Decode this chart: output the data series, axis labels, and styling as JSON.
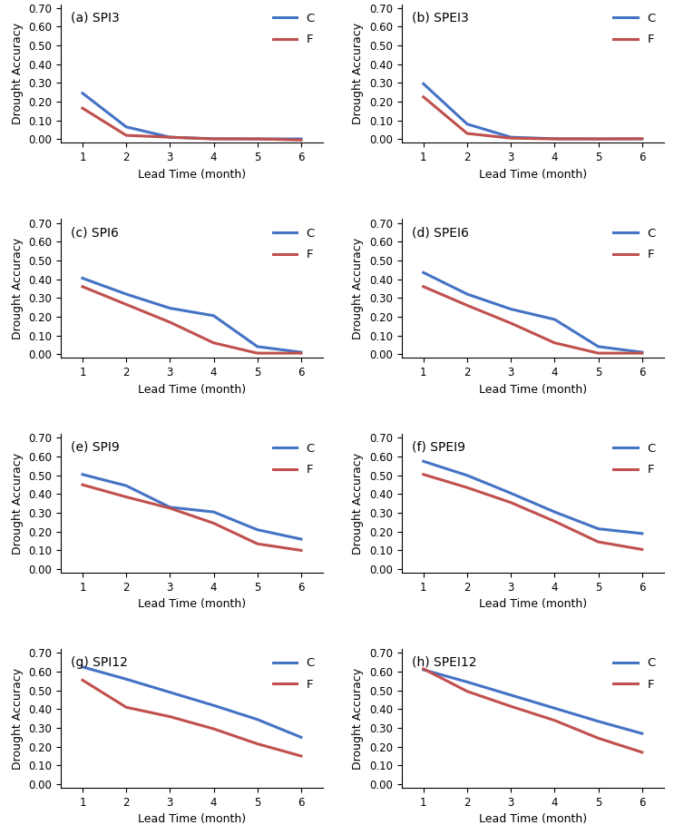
{
  "subplots": [
    {
      "title": "(a) SPI3",
      "C": [
        0.245,
        0.065,
        0.01,
        0.002,
        0.001,
        0.001
      ],
      "F": [
        0.165,
        0.02,
        0.01,
        0.001,
        0.001,
        -0.005
      ]
    },
    {
      "title": "(b) SPEI3",
      "C": [
        0.295,
        0.08,
        0.01,
        0.002,
        0.001,
        0.001
      ],
      "F": [
        0.225,
        0.03,
        0.005,
        0.001,
        0.001,
        0.002
      ]
    },
    {
      "title": "(c) SPI6",
      "C": [
        0.405,
        0.32,
        0.245,
        0.205,
        0.04,
        0.01
      ],
      "F": [
        0.36,
        0.265,
        0.17,
        0.06,
        0.005,
        0.005
      ]
    },
    {
      "title": "(d) SPEI6",
      "C": [
        0.435,
        0.32,
        0.24,
        0.185,
        0.04,
        0.01
      ],
      "F": [
        0.36,
        0.26,
        0.165,
        0.06,
        0.005,
        0.005
      ]
    },
    {
      "title": "(e) SPI9",
      "C": [
        0.505,
        0.445,
        0.33,
        0.305,
        0.21,
        0.16
      ],
      "F": [
        0.45,
        0.385,
        0.325,
        0.245,
        0.135,
        0.1
      ]
    },
    {
      "title": "(f) SPEI9",
      "C": [
        0.575,
        0.5,
        0.405,
        0.305,
        0.215,
        0.19
      ],
      "F": [
        0.505,
        0.435,
        0.355,
        0.255,
        0.145,
        0.105
      ]
    },
    {
      "title": "(g) SPI12",
      "C": [
        0.625,
        0.56,
        0.49,
        0.42,
        0.345,
        0.25
      ],
      "F": [
        0.555,
        0.41,
        0.36,
        0.295,
        0.215,
        0.15
      ]
    },
    {
      "title": "(h) SPEI12",
      "C": [
        0.61,
        0.545,
        0.475,
        0.405,
        0.335,
        0.27
      ],
      "F": [
        0.615,
        0.495,
        0.415,
        0.34,
        0.245,
        0.17
      ]
    }
  ],
  "x": [
    1,
    2,
    3,
    4,
    5,
    6
  ],
  "color_C": "#4472C4",
  "color_F": "#C0504D",
  "ylim": [
    -0.02,
    0.72
  ],
  "yticks": [
    0.0,
    0.1,
    0.2,
    0.3,
    0.4,
    0.5,
    0.6,
    0.7
  ],
  "xticks": [
    1,
    2,
    3,
    4,
    5,
    6
  ],
  "xlabel": "Lead Time (month)",
  "ylabel": "Drought Accuracy",
  "linewidth": 2.2,
  "title_fontsize": 10,
  "label_fontsize": 9,
  "tick_fontsize": 8.5,
  "legend_fontsize": 9.5
}
